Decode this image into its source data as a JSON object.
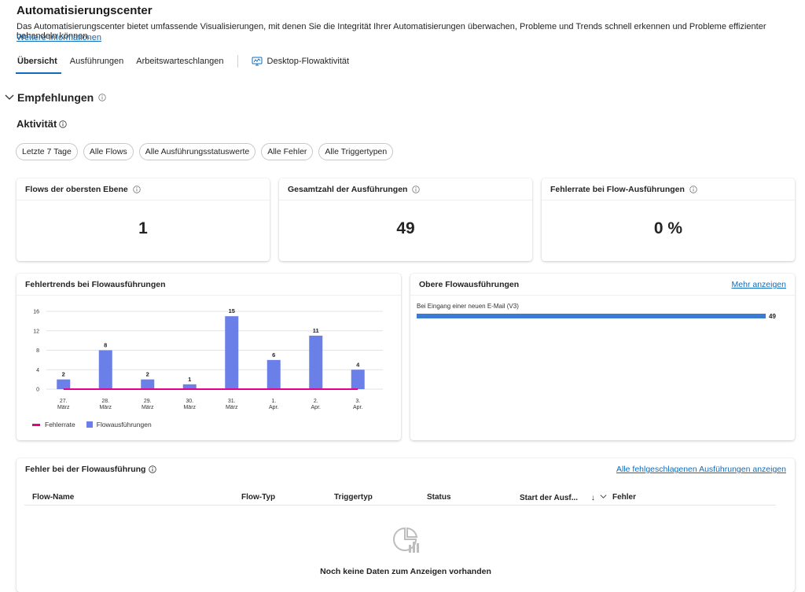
{
  "header": {
    "title": "Automatisierungscenter",
    "description": "Das Automatisierungscenter bietet umfassende Visualisierungen, mit denen Sie die Integrität Ihrer Automatisierungen überwachen, Probleme und Trends schnell erkennen und Probleme effizienter behandeln können.",
    "more_info": "Weitere Informationen"
  },
  "tabs": [
    "Übersicht",
    "Ausführungen",
    "Arbeitswarteschlangen",
    "Desktop-Flowaktivität"
  ],
  "recommendations": {
    "label": "Empfehlungen"
  },
  "activity": {
    "label": "Aktivität"
  },
  "filters": [
    "Letzte 7 Tage",
    "Alle Flows",
    "Alle Ausführungsstatuswerte",
    "Alle Fehler",
    "Alle Triggertypen"
  ],
  "kpis": [
    {
      "title": "Flows der obersten Ebene",
      "value": "1"
    },
    {
      "title": "Gesamtzahl der Ausführungen",
      "value": "49"
    },
    {
      "title": "Fehlerrate bei Flow-Ausführungen",
      "value": "0 %"
    }
  ],
  "error_trends": {
    "title": "Fehlertrends bei Flowausführungen",
    "legend": [
      "Fehlerrate",
      "Flowausführungen"
    ]
  },
  "chart_data": {
    "type": "bar",
    "categories": [
      [
        "27.",
        "März"
      ],
      [
        "28.",
        "März"
      ],
      [
        "29.",
        "März"
      ],
      [
        "30.",
        "März"
      ],
      [
        "31.",
        "März"
      ],
      [
        "1.",
        "Apr."
      ],
      [
        "2.",
        "Apr."
      ],
      [
        "3.",
        "Apr."
      ]
    ],
    "series": [
      {
        "name": "Flowausführungen",
        "type": "bar",
        "values": [
          2,
          8,
          2,
          1,
          15,
          6,
          11,
          4
        ],
        "color": "#6b7fe8"
      },
      {
        "name": "Fehlerrate",
        "type": "line",
        "values": [
          0,
          0,
          0,
          0,
          0,
          0,
          0,
          0
        ],
        "color": "#e3008c"
      }
    ],
    "yticks": [
      0,
      4,
      8,
      12,
      16
    ],
    "ylim": [
      0,
      16
    ],
    "grid": true,
    "legend": "bottom-left"
  },
  "top_flows": {
    "title": "Obere Flowausführungen",
    "more_label": "Mehr anzeigen",
    "items": [
      {
        "name": "Bei Eingang einer neuen E-Mail (V3)",
        "value": 49
      }
    ]
  },
  "errors_table": {
    "title": "Fehler bei der Flowausführung",
    "link": "Alle fehlgeschlagenen Ausführungen anzeigen",
    "columns": [
      "Flow-Name",
      "Flow-Typ",
      "Triggertyp",
      "Status",
      "Start der Ausf...",
      "Fehler"
    ],
    "empty_text": "Noch keine Daten zum Anzeigen vorhanden"
  }
}
